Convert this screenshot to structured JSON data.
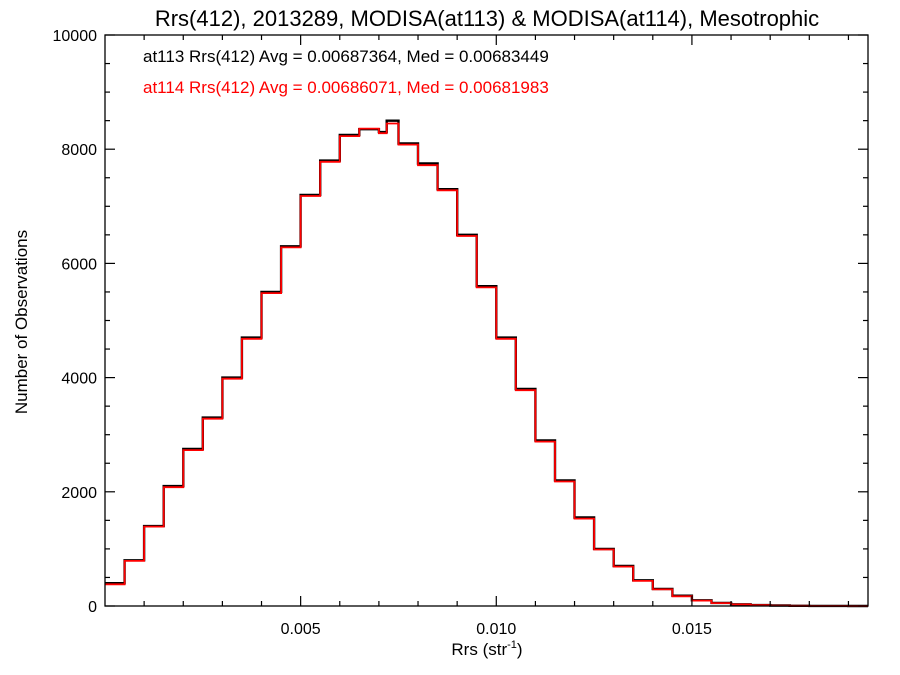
{
  "chart_data": {
    "type": "line",
    "step": true,
    "title": "Rrs(412), 2013289, MODISA(at113) & MODISA(at114), Mesotrophic",
    "xlabel": "Rrs (str",
    "xlabel_sup": "-1",
    "xlabel_end": ")",
    "ylabel": "Number of Observations",
    "xlim": [
      0.0,
      0.0195
    ],
    "ylim": [
      0,
      10000
    ],
    "x_ticks": [
      {
        "value": 0.005,
        "label": "0.005"
      },
      {
        "value": 0.01,
        "label": "0.010"
      },
      {
        "value": 0.015,
        "label": "0.015"
      }
    ],
    "y_ticks": [
      {
        "value": 0,
        "label": "0"
      },
      {
        "value": 2000,
        "label": "2000"
      },
      {
        "value": 4000,
        "label": "4000"
      },
      {
        "value": 6000,
        "label": "6000"
      },
      {
        "value": 8000,
        "label": "8000"
      },
      {
        "value": 10000,
        "label": "10000"
      }
    ],
    "annotations": [
      {
        "text": "at113 Rrs(412) Avg = 0.00687364, Med = 0.00683449",
        "color": "#000000"
      },
      {
        "text": "at114 Rrs(412) Avg = 0.00686071, Med = 0.00681983",
        "color": "#ff0000"
      }
    ],
    "x": [
      0.0,
      0.0005,
      0.001,
      0.0015,
      0.002,
      0.0025,
      0.003,
      0.0035,
      0.004,
      0.0045,
      0.005,
      0.0055,
      0.006,
      0.0065,
      0.007,
      0.0072,
      0.0075,
      0.008,
      0.0085,
      0.009,
      0.0095,
      0.01,
      0.0105,
      0.011,
      0.0115,
      0.012,
      0.0125,
      0.013,
      0.0135,
      0.014,
      0.0145,
      0.015,
      0.0155,
      0.016,
      0.0165,
      0.017,
      0.0175,
      0.018,
      0.0185,
      0.019,
      0.0195
    ],
    "series": [
      {
        "name": "at113",
        "color": "#000000",
        "values": [
          400,
          800,
          1400,
          2100,
          2750,
          3300,
          4000,
          4700,
          5500,
          6300,
          7200,
          7800,
          8250,
          8350,
          8300,
          8500,
          8100,
          7750,
          7300,
          6500,
          5600,
          4700,
          3800,
          2900,
          2200,
          1550,
          1000,
          700,
          450,
          300,
          180,
          100,
          55,
          30,
          15,
          8,
          4,
          2,
          1,
          0,
          0
        ]
      },
      {
        "name": "at114",
        "color": "#ff0000",
        "values": [
          380,
          790,
          1390,
          2080,
          2730,
          3280,
          3980,
          4680,
          5480,
          6280,
          7180,
          7780,
          8230,
          8360,
          8280,
          8450,
          8080,
          7720,
          7280,
          6480,
          5580,
          4680,
          3780,
          2880,
          2180,
          1530,
          990,
          690,
          440,
          290,
          170,
          95,
          50,
          28,
          14,
          7,
          3,
          2,
          1,
          0,
          0
        ]
      }
    ]
  }
}
